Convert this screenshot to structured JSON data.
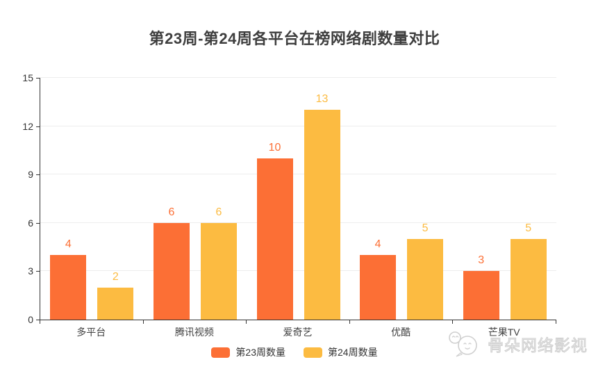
{
  "chart_data": {
    "type": "bar",
    "title": "第23周-第24周各平台在榜网络剧数量对比",
    "categories": [
      "多平台",
      "腾讯视频",
      "爱奇艺",
      "优酷",
      "芒果TV"
    ],
    "series": [
      {
        "name": "第23周数量",
        "color": "#fc6f35",
        "values": [
          4,
          6,
          10,
          4,
          3
        ]
      },
      {
        "name": "第24周数量",
        "color": "#fcbb41",
        "values": [
          2,
          6,
          13,
          5,
          5
        ]
      }
    ],
    "xlabel": "",
    "ylabel": "",
    "ylim": [
      0,
      15
    ],
    "yticks": [
      0,
      3,
      6,
      9,
      12,
      15
    ],
    "grid": true,
    "legend_position": "bottom",
    "value_labels": true
  },
  "watermark": {
    "text": "骨朵网络影视"
  },
  "colors": {
    "title": "#3e3e3e",
    "axis": "#333333",
    "grid": "#ededed",
    "tick_label": "#333333",
    "series1": "#fc6f35",
    "series2": "#fcbb41",
    "watermark": "#cfcfcf",
    "background": "#ffffff"
  }
}
